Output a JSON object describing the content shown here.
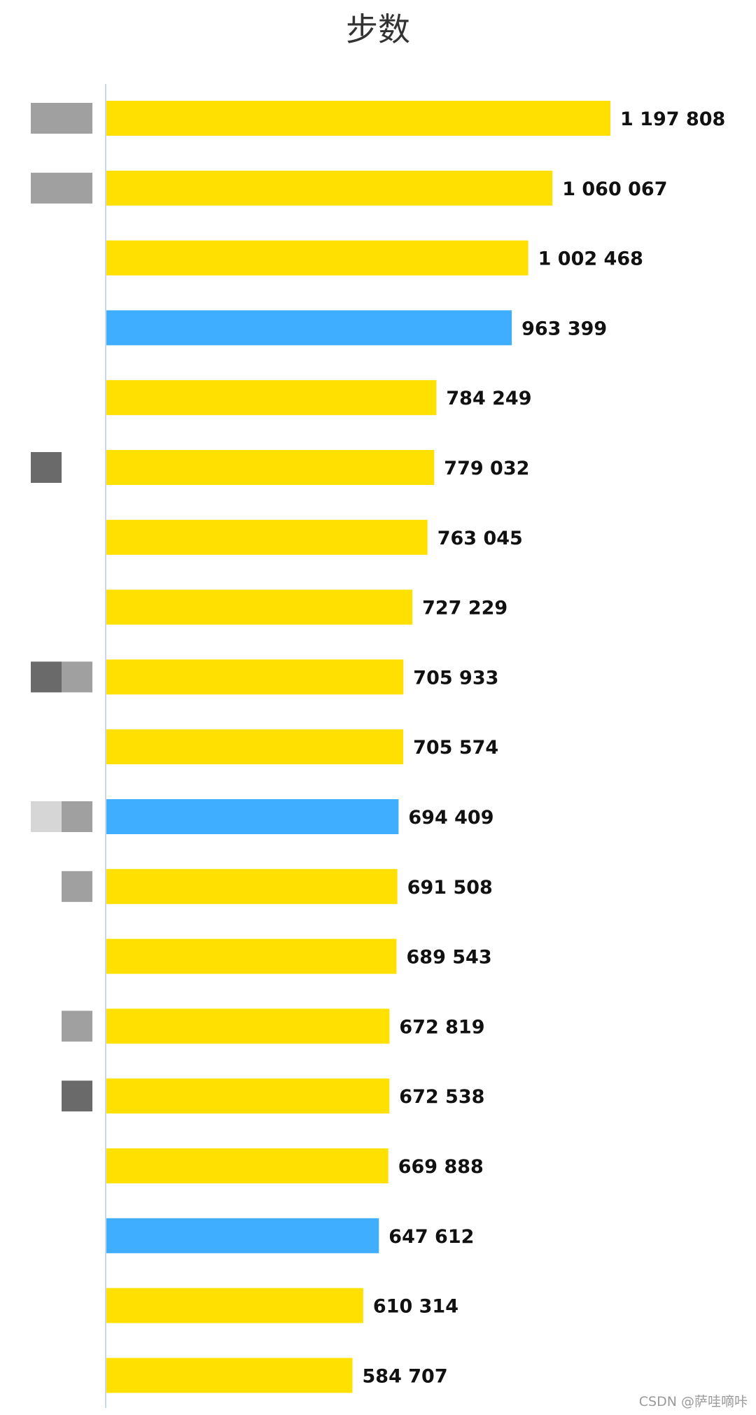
{
  "chart_data": {
    "type": "bar",
    "orientation": "horizontal",
    "title": "步数",
    "xlabel": "",
    "ylabel": "",
    "categories": [
      "",
      "",
      "",
      "",
      "",
      "",
      "",
      "",
      "",
      "",
      "",
      "",
      "",
      "",
      "",
      "",
      "",
      "",
      ""
    ],
    "values": [
      1197808,
      1060067,
      1002468,
      963399,
      784249,
      779032,
      763045,
      727229,
      705933,
      705574,
      694409,
      691508,
      689543,
      672819,
      672538,
      669888,
      647612,
      610314,
      584707
    ],
    "value_labels": [
      "1 197 808",
      "1 060 067",
      "1 002 468",
      "963 399",
      "784 249",
      "779 032",
      "763 045",
      "727 229",
      "705 933",
      "705 574",
      "694 409",
      "691 508",
      "689 543",
      "672 819",
      "672 538",
      "669 888",
      "647 612",
      "610 314",
      "584 707"
    ],
    "highlighted": [
      false,
      false,
      false,
      true,
      false,
      false,
      false,
      false,
      false,
      false,
      true,
      false,
      false,
      false,
      false,
      false,
      true,
      false,
      false
    ],
    "xlim": [
      0,
      1200000
    ],
    "grid": false,
    "legend": "none",
    "colors": {
      "default_bar": "#FFE000",
      "highlight_bar": "#3FAEFF",
      "axis": "#C9D8EE",
      "title": "#333333",
      "label": "#111111",
      "mosaic_light": "#d6d6d6",
      "mosaic_mid": "#a0a0a0",
      "mosaic_dark": "#6a6a6a"
    }
  },
  "watermark": "CSDN @萨哇嘀咔"
}
